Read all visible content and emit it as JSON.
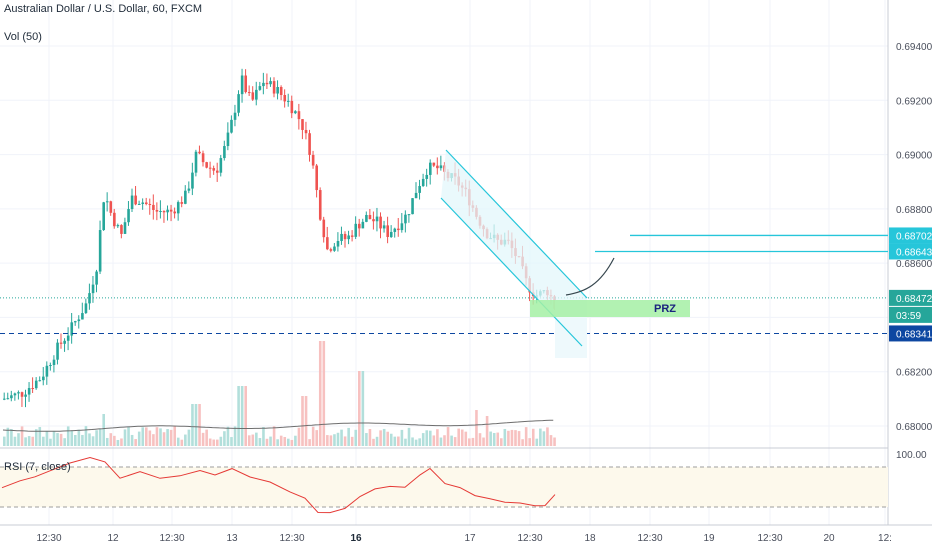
{
  "header": {
    "title": "Australian Dollar / U.S. Dollar, 60, FXCM",
    "volume_label": "Vol (50)",
    "rsi_label": "RSI (7, close)"
  },
  "colors": {
    "up": "#26a69a",
    "down": "#ef5350",
    "vol_up": "#b2dfdb",
    "vol_down": "#f7c1c0",
    "channel": "#26c6da",
    "prz_fill": "#a5f0a5",
    "price_tag": "#26a69a",
    "support_tag": "#0d47a1",
    "level_tag": "#26c6da",
    "rsi_line": "#e53935"
  },
  "chart_data": {
    "type": "candlestick",
    "y_axis": {
      "range": [
        0.6792,
        0.6958
      ],
      "ticks": [
        "0.69400",
        "0.69200",
        "0.69000",
        "0.68800",
        "0.68600",
        "0.68400",
        "0.68200",
        "0.68000"
      ]
    },
    "x_axis": {
      "ticks": [
        {
          "label": "12:30",
          "bold": false
        },
        {
          "label": "12",
          "bold": false
        },
        {
          "label": "12:30",
          "bold": false
        },
        {
          "label": "13",
          "bold": false
        },
        {
          "label": "12:30",
          "bold": false
        },
        {
          "label": "16",
          "bold": true
        },
        {
          "label": "17",
          "bold": false
        },
        {
          "label": "12:30",
          "bold": false
        },
        {
          "label": "18",
          "bold": false
        },
        {
          "label": "12:30",
          "bold": false
        },
        {
          "label": "19",
          "bold": false
        },
        {
          "label": "12:30",
          "bold": false
        },
        {
          "label": "20",
          "bold": false
        },
        {
          "label": "12:",
          "bold": false
        }
      ]
    },
    "price_tags": [
      {
        "text": "0.68702",
        "value": 0.68702,
        "style": "level"
      },
      {
        "text": "0.68643",
        "value": 0.68643,
        "style": "level"
      },
      {
        "text": "0.68472",
        "value": 0.68472,
        "style": "last"
      },
      {
        "text": "03:59",
        "value": 0.68375,
        "style": "timer"
      },
      {
        "text": "0.68341",
        "value": 0.68341,
        "style": "support"
      }
    ],
    "prz": {
      "label": "PRZ",
      "top": 0.6846,
      "bottom": 0.6837
    },
    "rsi": {
      "ticks": [
        "100.00"
      ],
      "upper": 70,
      "lower": 30
    }
  }
}
